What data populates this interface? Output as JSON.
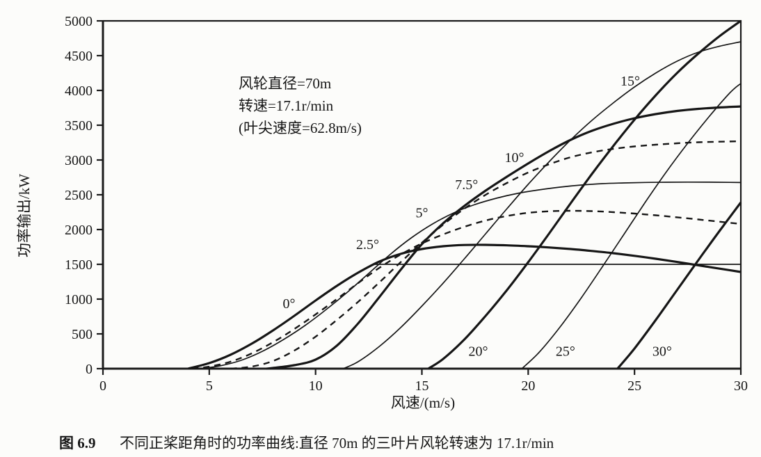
{
  "chart_data": {
    "type": "line",
    "xlabel": "风速/(m/s)",
    "ylabel": "功率输出/kW",
    "xlim": [
      0,
      30
    ],
    "ylim": [
      0,
      5000
    ],
    "xticks": [
      0,
      5,
      10,
      15,
      20,
      25,
      30
    ],
    "yticks": [
      0,
      500,
      1000,
      1500,
      2000,
      2500,
      3000,
      3500,
      4000,
      4500,
      5000
    ],
    "grid": false,
    "legend": "curve labels placed beside each curve",
    "line_color": "#161616",
    "annotation": {
      "lines": [
        "风轮直径=70m",
        "转速=17.1r/min",
        "(叶尖速度=62.8m/s)"
      ]
    },
    "series": [
      {
        "name": "pitch-0deg",
        "style": "thick",
        "label": {
          "text": "0°",
          "x": 8.75,
          "y": 940
        },
        "points": [
          [
            4,
            0
          ],
          [
            5,
            80
          ],
          [
            6,
            200
          ],
          [
            7,
            360
          ],
          [
            8,
            550
          ],
          [
            9,
            760
          ],
          [
            10,
            980
          ],
          [
            11,
            1190
          ],
          [
            12,
            1380
          ],
          [
            13,
            1540
          ],
          [
            14,
            1650
          ],
          [
            15,
            1720
          ],
          [
            16,
            1760
          ],
          [
            17,
            1778
          ],
          [
            18,
            1780
          ],
          [
            19,
            1773
          ],
          [
            20,
            1760
          ],
          [
            21,
            1742
          ],
          [
            22,
            1720
          ],
          [
            23,
            1692
          ],
          [
            24,
            1660
          ],
          [
            25,
            1622
          ],
          [
            26,
            1580
          ],
          [
            27,
            1534
          ],
          [
            28,
            1486
          ],
          [
            29,
            1438
          ],
          [
            30,
            1390
          ]
        ]
      },
      {
        "name": "pitch-2.5deg",
        "style": "dashed",
        "label": {
          "text": "2.5°",
          "x": 12.45,
          "y": 1790
        },
        "points": [
          [
            4.2,
            0
          ],
          [
            5,
            30
          ],
          [
            6,
            100
          ],
          [
            7,
            220
          ],
          [
            8,
            380
          ],
          [
            9,
            570
          ],
          [
            10,
            780
          ],
          [
            11,
            1000
          ],
          [
            12,
            1230
          ],
          [
            13,
            1450
          ],
          [
            14,
            1640
          ],
          [
            15,
            1800
          ],
          [
            16,
            1930
          ],
          [
            17,
            2040
          ],
          [
            18,
            2130
          ],
          [
            19,
            2195
          ],
          [
            20,
            2240
          ],
          [
            21,
            2263
          ],
          [
            22,
            2270
          ],
          [
            23,
            2265
          ],
          [
            24,
            2250
          ],
          [
            25,
            2230
          ],
          [
            26,
            2205
          ],
          [
            27,
            2176
          ],
          [
            28,
            2145
          ],
          [
            29,
            2113
          ],
          [
            30,
            2080
          ]
        ]
      },
      {
        "name": "pitch-5deg",
        "style": "thin",
        "label": {
          "text": "5°",
          "x": 15.0,
          "y": 2245
        },
        "points": [
          [
            4.6,
            0
          ],
          [
            5.5,
            40
          ],
          [
            6.5,
            120
          ],
          [
            7.5,
            250
          ],
          [
            8.5,
            420
          ],
          [
            9.5,
            620
          ],
          [
            10.5,
            850
          ],
          [
            11.5,
            1100
          ],
          [
            12.5,
            1370
          ],
          [
            13.5,
            1640
          ],
          [
            14.5,
            1880
          ],
          [
            15.5,
            2080
          ],
          [
            16.5,
            2240
          ],
          [
            17.5,
            2360
          ],
          [
            18.5,
            2450
          ],
          [
            19.5,
            2520
          ],
          [
            20.5,
            2570
          ],
          [
            21.5,
            2610
          ],
          [
            22.5,
            2640
          ],
          [
            23.5,
            2660
          ],
          [
            24.5,
            2670
          ],
          [
            25.5,
            2677
          ],
          [
            26.5,
            2680
          ],
          [
            27.5,
            2682
          ],
          [
            28.5,
            2681
          ],
          [
            29.5,
            2678
          ],
          [
            30,
            2676
          ]
        ]
      },
      {
        "name": "pitch-7.5deg",
        "style": "dashed",
        "label": {
          "text": "7.5°",
          "x": 17.1,
          "y": 2650
        },
        "points": [
          [
            6,
            0
          ],
          [
            7,
            30
          ],
          [
            8,
            110
          ],
          [
            9,
            260
          ],
          [
            10,
            460
          ],
          [
            11,
            700
          ],
          [
            12,
            960
          ],
          [
            13,
            1240
          ],
          [
            14,
            1530
          ],
          [
            15,
            1810
          ],
          [
            16,
            2070
          ],
          [
            17,
            2300
          ],
          [
            18,
            2500
          ],
          [
            19,
            2670
          ],
          [
            20,
            2820
          ],
          [
            21,
            2940
          ],
          [
            22,
            3040
          ],
          [
            23,
            3110
          ],
          [
            24,
            3160
          ],
          [
            25,
            3195
          ],
          [
            26,
            3220
          ],
          [
            27,
            3240
          ],
          [
            28,
            3255
          ],
          [
            29,
            3263
          ],
          [
            30,
            3270
          ]
        ]
      },
      {
        "name": "pitch-10deg",
        "style": "thick",
        "label": {
          "text": "10°",
          "x": 19.35,
          "y": 3040
        },
        "points": [
          [
            7.7,
            0
          ],
          [
            8,
            10
          ],
          [
            9,
            50
          ],
          [
            10,
            130
          ],
          [
            11,
            330
          ],
          [
            12,
            650
          ],
          [
            13,
            1030
          ],
          [
            14,
            1420
          ],
          [
            15,
            1790
          ],
          [
            16,
            2090
          ],
          [
            17,
            2340
          ],
          [
            18,
            2560
          ],
          [
            19,
            2760
          ],
          [
            20,
            2950
          ],
          [
            21,
            3130
          ],
          [
            22,
            3290
          ],
          [
            23,
            3420
          ],
          [
            24,
            3520
          ],
          [
            25,
            3600
          ],
          [
            26,
            3660
          ],
          [
            27,
            3705
          ],
          [
            28,
            3735
          ],
          [
            29,
            3755
          ],
          [
            30,
            3770
          ]
        ]
      },
      {
        "name": "pitch-15deg",
        "style": "thin",
        "label": {
          "text": "15°",
          "x": 24.8,
          "y": 4140
        },
        "points": [
          [
            11.3,
            0
          ],
          [
            12,
            100
          ],
          [
            13,
            320
          ],
          [
            14,
            590
          ],
          [
            15,
            900
          ],
          [
            16,
            1230
          ],
          [
            17,
            1580
          ],
          [
            18,
            1940
          ],
          [
            19,
            2300
          ],
          [
            20,
            2650
          ],
          [
            21,
            2980
          ],
          [
            22,
            3290
          ],
          [
            23,
            3570
          ],
          [
            24,
            3820
          ],
          [
            25,
            4050
          ],
          [
            26,
            4250
          ],
          [
            27,
            4420
          ],
          [
            28,
            4550
          ],
          [
            29,
            4635
          ],
          [
            30,
            4700
          ]
        ]
      },
      {
        "name": "pitch-20deg",
        "style": "thick",
        "label": {
          "text": "20°",
          "x": 17.65,
          "y": 255
        },
        "points": [
          [
            15.3,
            0
          ],
          [
            16,
            140
          ],
          [
            17,
            420
          ],
          [
            18,
            760
          ],
          [
            19,
            1130
          ],
          [
            20,
            1530
          ],
          [
            21,
            1950
          ],
          [
            22,
            2380
          ],
          [
            23,
            2800
          ],
          [
            24,
            3200
          ],
          [
            25,
            3580
          ],
          [
            26,
            3930
          ],
          [
            27,
            4250
          ],
          [
            28,
            4530
          ],
          [
            29,
            4780
          ],
          [
            30,
            5000
          ]
        ]
      },
      {
        "name": "pitch-25deg",
        "style": "thin",
        "label": {
          "text": "25°",
          "x": 21.75,
          "y": 255
        },
        "points": [
          [
            19.7,
            0
          ],
          [
            20.5,
            230
          ],
          [
            21.5,
            600
          ],
          [
            22.5,
            1020
          ],
          [
            23.5,
            1470
          ],
          [
            24.5,
            1930
          ],
          [
            25.5,
            2390
          ],
          [
            26.5,
            2830
          ],
          [
            27.5,
            3240
          ],
          [
            28.5,
            3620
          ],
          [
            29.5,
            3970
          ],
          [
            30,
            4100
          ]
        ]
      },
      {
        "name": "pitch-30deg",
        "style": "thick",
        "label": {
          "text": "30°",
          "x": 26.3,
          "y": 255
        },
        "points": [
          [
            24.2,
            0
          ],
          [
            25,
            290
          ],
          [
            26,
            700
          ],
          [
            27,
            1130
          ],
          [
            28,
            1560
          ],
          [
            29,
            1980
          ],
          [
            30,
            2390
          ]
        ]
      },
      {
        "name": "rated-power-line",
        "style": "thin",
        "label": null,
        "points": [
          [
            12.7,
            1500
          ],
          [
            30,
            1500
          ]
        ]
      }
    ]
  },
  "caption": {
    "fig_no": "图 6.9",
    "text": "不同正桨距角时的功率曲线:直径 70m 的三叶片风轮转速为 17.1r/min"
  }
}
